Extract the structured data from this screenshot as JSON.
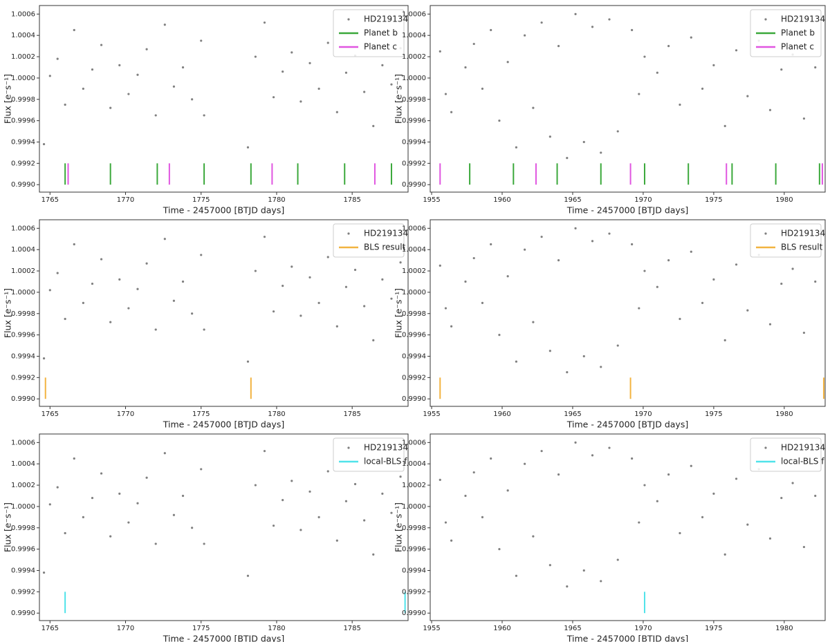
{
  "chart_data": [
    {
      "type": "scatter",
      "xlabel": "Time - 2457000 [BTJD days]",
      "ylabel": "Flux [e⁻s⁻¹]",
      "xlim": [
        1764.3,
        1788.7
      ],
      "ylim": [
        0.99893,
        1.00068
      ],
      "xticks": [
        1765,
        1770,
        1775,
        1780,
        1785
      ],
      "yticks": [
        {
          "value": 0.999,
          "label": "0.9990"
        },
        {
          "value": 0.9992,
          "label": "0.9992"
        },
        {
          "value": 0.9994,
          "label": "0.9994"
        },
        {
          "value": 0.9996,
          "label": "0.9996"
        },
        {
          "value": 0.9998,
          "label": "0.9998"
        },
        {
          "value": 1,
          "label": "1.0000"
        },
        {
          "value": 1.0002,
          "label": "1.0002"
        },
        {
          "value": 1.0004,
          "label": "1.0004"
        },
        {
          "value": 1.0006,
          "label": "1.0006"
        }
      ],
      "legend": "upper right",
      "series": [
        {
          "name": "HD219134",
          "type": "scatter",
          "color": "#808080",
          "x": [
            1764.6,
            1765.0,
            1765.5,
            1766.0,
            1766.6,
            1767.2,
            1767.8,
            1768.4,
            1769.0,
            1769.6,
            1770.2,
            1770.8,
            1771.4,
            1772.0,
            1772.6,
            1773.2,
            1773.8,
            1774.4,
            1775.0,
            1775.2,
            1778.1,
            1778.6,
            1779.2,
            1779.8,
            1780.4,
            1781.0,
            1781.6,
            1782.2,
            1782.8,
            1783.4,
            1784.0,
            1784.6,
            1785.2,
            1785.8,
            1786.4,
            1787.0,
            1787.6,
            1788.2
          ],
          "values": [
            0.99938,
            1.00002,
            1.00018,
            0.99975,
            1.00045,
            0.9999,
            1.00008,
            1.00031,
            0.99972,
            1.00012,
            0.99985,
            1.00003,
            1.00027,
            0.99965,
            1.0005,
            0.99992,
            1.0001,
            0.9998,
            1.00035,
            0.99965,
            0.99935,
            1.0002,
            1.00052,
            0.99982,
            1.00006,
            1.00024,
            0.99978,
            1.00014,
            0.9999,
            1.00033,
            0.99968,
            1.00005,
            1.00021,
            0.99987,
            0.99955,
            1.00012,
            0.99994,
            1.00028
          ]
        },
        {
          "name": "Planet b",
          "type": "vline",
          "color": "#3aa83a",
          "x": [
            1766.0,
            1769.0,
            1772.1,
            1775.2,
            1778.3,
            1781.4,
            1784.5,
            1787.6
          ],
          "ymin": 0.999,
          "ymax": 0.9992
        },
        {
          "name": "Planet c",
          "type": "vline",
          "color": "#e055e0",
          "x": [
            1766.2,
            1772.9,
            1779.7,
            1786.5
          ],
          "ymin": 0.999,
          "ymax": 0.9992
        }
      ]
    },
    {
      "type": "scatter",
      "xlabel": "Time - 2457000 [BTJD days]",
      "ylabel": "Flux [e⁻s⁻¹]",
      "xlim": [
        1954.9,
        1982.9
      ],
      "ylim": [
        0.99893,
        1.00068
      ],
      "xticks": [
        1955,
        1960,
        1965,
        1970,
        1975,
        1980
      ],
      "yticks": [
        {
          "value": 0.999,
          "label": "0.9990"
        },
        {
          "value": 0.9992,
          "label": "0.9992"
        },
        {
          "value": 0.9994,
          "label": "0.9994"
        },
        {
          "value": 0.9996,
          "label": "0.9996"
        },
        {
          "value": 0.9998,
          "label": "0.9998"
        },
        {
          "value": 1,
          "label": "1.0000"
        },
        {
          "value": 1.0002,
          "label": "1.0002"
        },
        {
          "value": 1.0004,
          "label": "1.0004"
        },
        {
          "value": 1.0006,
          "label": "1.0006"
        }
      ],
      "legend": "upper right",
      "series": [
        {
          "name": "HD219134",
          "type": "scatter",
          "color": "#808080",
          "x": [
            1955.6,
            1956.0,
            1956.4,
            1957.4,
            1958.0,
            1958.6,
            1959.2,
            1959.8,
            1960.4,
            1961.0,
            1961.6,
            1962.2,
            1962.8,
            1963.4,
            1964.0,
            1964.6,
            1965.2,
            1965.8,
            1966.4,
            1967.0,
            1967.6,
            1968.2,
            1969.2,
            1969.7,
            1970.1,
            1971.0,
            1971.8,
            1972.6,
            1973.4,
            1974.2,
            1975.0,
            1975.8,
            1976.6,
            1977.4,
            1978.2,
            1979.0,
            1979.8,
            1980.6,
            1981.4,
            1982.2
          ],
          "values": [
            1.00025,
            0.99985,
            0.99968,
            1.0001,
            1.00032,
            0.9999,
            1.00045,
            0.9996,
            1.00015,
            0.99935,
            1.0004,
            0.99972,
            1.00052,
            0.99945,
            1.0003,
            0.99925,
            1.0006,
            0.9994,
            1.00048,
            0.9993,
            1.00055,
            0.9995,
            1.00045,
            0.99985,
            1.0002,
            1.00005,
            1.0003,
            0.99975,
            1.00038,
            0.9999,
            1.00012,
            0.99955,
            1.00026,
            0.99983,
            1.00035,
            0.9997,
            1.00008,
            1.00022,
            0.99962,
            1.0001
          ]
        },
        {
          "name": "Planet b",
          "type": "vline",
          "color": "#3aa83a",
          "x": [
            1957.7,
            1960.8,
            1963.9,
            1967.0,
            1970.1,
            1973.2,
            1976.3,
            1979.4,
            1982.5
          ],
          "ymin": 0.999,
          "ymax": 0.9992
        },
        {
          "name": "Planet c",
          "type": "vline",
          "color": "#e055e0",
          "x": [
            1955.6,
            1962.4,
            1969.1,
            1975.9,
            1982.7
          ],
          "ymin": 0.999,
          "ymax": 0.9992
        }
      ]
    },
    {
      "type": "scatter",
      "xlabel": "Time - 2457000 [BTJD days]",
      "ylabel": "Flux [e⁻s⁻¹]",
      "xlim": [
        1764.3,
        1788.7
      ],
      "ylim": [
        0.99893,
        1.00068
      ],
      "xticks": [
        1765,
        1770,
        1775,
        1780,
        1785
      ],
      "yticks": [
        {
          "value": 0.999,
          "label": "0.9990"
        },
        {
          "value": 0.9992,
          "label": "0.9992"
        },
        {
          "value": 0.9994,
          "label": "0.9994"
        },
        {
          "value": 0.9996,
          "label": "0.9996"
        },
        {
          "value": 0.9998,
          "label": "0.9998"
        },
        {
          "value": 1,
          "label": "1.0000"
        },
        {
          "value": 1.0002,
          "label": "1.0002"
        },
        {
          "value": 1.0004,
          "label": "1.0004"
        },
        {
          "value": 1.0006,
          "label": "1.0006"
        }
      ],
      "legend": "upper right",
      "series": [
        {
          "name": "HD219134",
          "type": "scatter",
          "color": "#808080",
          "x": [
            1764.6,
            1765.0,
            1765.5,
            1766.0,
            1766.6,
            1767.2,
            1767.8,
            1768.4,
            1769.0,
            1769.6,
            1770.2,
            1770.8,
            1771.4,
            1772.0,
            1772.6,
            1773.2,
            1773.8,
            1774.4,
            1775.0,
            1775.2,
            1778.1,
            1778.6,
            1779.2,
            1779.8,
            1780.4,
            1781.0,
            1781.6,
            1782.2,
            1782.8,
            1783.4,
            1784.0,
            1784.6,
            1785.2,
            1785.8,
            1786.4,
            1787.0,
            1787.6,
            1788.2
          ],
          "values": [
            0.99938,
            1.00002,
            1.00018,
            0.99975,
            1.00045,
            0.9999,
            1.00008,
            1.00031,
            0.99972,
            1.00012,
            0.99985,
            1.00003,
            1.00027,
            0.99965,
            1.0005,
            0.99992,
            1.0001,
            0.9998,
            1.00035,
            0.99965,
            0.99935,
            1.0002,
            1.00052,
            0.99982,
            1.00006,
            1.00024,
            0.99978,
            1.00014,
            0.9999,
            1.00033,
            0.99968,
            1.00005,
            1.00021,
            0.99987,
            0.99955,
            1.00012,
            0.99994,
            1.00028
          ]
        },
        {
          "name": "BLS result",
          "type": "vline",
          "color": "#f2b340",
          "x": [
            1764.7,
            1778.3
          ],
          "ymin": 0.999,
          "ymax": 0.9992
        }
      ]
    },
    {
      "type": "scatter",
      "xlabel": "Time - 2457000 [BTJD days]",
      "ylabel": "Flux [e⁻s⁻¹]",
      "xlim": [
        1954.9,
        1982.9
      ],
      "ylim": [
        0.99893,
        1.00068
      ],
      "xticks": [
        1955,
        1960,
        1965,
        1970,
        1975,
        1980
      ],
      "yticks": [
        {
          "value": 0.999,
          "label": "0.9990"
        },
        {
          "value": 0.9992,
          "label": "0.9992"
        },
        {
          "value": 0.9994,
          "label": "0.9994"
        },
        {
          "value": 0.9996,
          "label": "0.9996"
        },
        {
          "value": 0.9998,
          "label": "0.9998"
        },
        {
          "value": 1,
          "label": "1.0000"
        },
        {
          "value": 1.0002,
          "label": "1.0002"
        },
        {
          "value": 1.0004,
          "label": "1.0004"
        },
        {
          "value": 1.0006,
          "label": "1.0006"
        }
      ],
      "legend": "upper right",
      "series": [
        {
          "name": "HD219134",
          "type": "scatter",
          "color": "#808080",
          "x": [
            1955.6,
            1956.0,
            1956.4,
            1957.4,
            1958.0,
            1958.6,
            1959.2,
            1959.8,
            1960.4,
            1961.0,
            1961.6,
            1962.2,
            1962.8,
            1963.4,
            1964.0,
            1964.6,
            1965.2,
            1965.8,
            1966.4,
            1967.0,
            1967.6,
            1968.2,
            1969.2,
            1969.7,
            1970.1,
            1971.0,
            1971.8,
            1972.6,
            1973.4,
            1974.2,
            1975.0,
            1975.8,
            1976.6,
            1977.4,
            1978.2,
            1979.0,
            1979.8,
            1980.6,
            1981.4,
            1982.2
          ],
          "values": [
            1.00025,
            0.99985,
            0.99968,
            1.0001,
            1.00032,
            0.9999,
            1.00045,
            0.9996,
            1.00015,
            0.99935,
            1.0004,
            0.99972,
            1.00052,
            0.99945,
            1.0003,
            0.99925,
            1.0006,
            0.9994,
            1.00048,
            0.9993,
            1.00055,
            0.9995,
            1.00045,
            0.99985,
            1.0002,
            1.00005,
            1.0003,
            0.99975,
            1.00038,
            0.9999,
            1.00012,
            0.99955,
            1.00026,
            0.99983,
            1.00035,
            0.9997,
            1.00008,
            1.00022,
            0.99962,
            1.0001
          ]
        },
        {
          "name": "BLS result",
          "type": "vline",
          "color": "#f2b340",
          "x": [
            1955.6,
            1969.1,
            1982.8
          ],
          "ymin": 0.999,
          "ymax": 0.9992
        }
      ]
    },
    {
      "type": "scatter",
      "xlabel": "Time - 2457000 [BTJD days]",
      "ylabel": "Flux [e⁻s⁻¹]",
      "xlim": [
        1764.3,
        1788.7
      ],
      "ylim": [
        0.99893,
        1.00068
      ],
      "xticks": [
        1765,
        1770,
        1775,
        1780,
        1785
      ],
      "yticks": [
        {
          "value": 0.999,
          "label": "0.9990"
        },
        {
          "value": 0.9992,
          "label": "0.9992"
        },
        {
          "value": 0.9994,
          "label": "0.9994"
        },
        {
          "value": 0.9996,
          "label": "0.9996"
        },
        {
          "value": 0.9998,
          "label": "0.9998"
        },
        {
          "value": 1,
          "label": "1.0000"
        },
        {
          "value": 1.0002,
          "label": "1.0002"
        },
        {
          "value": 1.0004,
          "label": "1.0004"
        },
        {
          "value": 1.0006,
          "label": "1.0006"
        }
      ],
      "legend": "upper right",
      "series": [
        {
          "name": "HD219134",
          "type": "scatter",
          "color": "#808080",
          "x": [
            1764.6,
            1765.0,
            1765.5,
            1766.0,
            1766.6,
            1767.2,
            1767.8,
            1768.4,
            1769.0,
            1769.6,
            1770.2,
            1770.8,
            1771.4,
            1772.0,
            1772.6,
            1773.2,
            1773.8,
            1774.4,
            1775.0,
            1775.2,
            1778.1,
            1778.6,
            1779.2,
            1779.8,
            1780.4,
            1781.0,
            1781.6,
            1782.2,
            1782.8,
            1783.4,
            1784.0,
            1784.6,
            1785.2,
            1785.8,
            1786.4,
            1787.0,
            1787.6,
            1788.2
          ],
          "values": [
            0.99938,
            1.00002,
            1.00018,
            0.99975,
            1.00045,
            0.9999,
            1.00008,
            1.00031,
            0.99972,
            1.00012,
            0.99985,
            1.00003,
            1.00027,
            0.99965,
            1.0005,
            0.99992,
            1.0001,
            0.9998,
            1.00035,
            0.99965,
            0.99935,
            1.0002,
            1.00052,
            0.99982,
            1.00006,
            1.00024,
            0.99978,
            1.00014,
            0.9999,
            1.00033,
            0.99968,
            1.00005,
            1.00021,
            0.99987,
            0.99955,
            1.00012,
            0.99994,
            1.00028
          ]
        },
        {
          "name": "local-BLS f",
          "type": "vline",
          "color": "#4fe3ea",
          "x": [
            1766.0,
            1788.5
          ],
          "ymin": 0.999,
          "ymax": 0.9992
        }
      ]
    },
    {
      "type": "scatter",
      "xlabel": "Time - 2457000 [BTJD days]",
      "ylabel": "Flux [e⁻s⁻¹]",
      "xlim": [
        1954.9,
        1982.9
      ],
      "ylim": [
        0.99893,
        1.00068
      ],
      "xticks": [
        1955,
        1960,
        1965,
        1970,
        1975,
        1980
      ],
      "yticks": [
        {
          "value": 0.999,
          "label": "0.9990"
        },
        {
          "value": 0.9992,
          "label": "0.9992"
        },
        {
          "value": 0.9994,
          "label": "0.9994"
        },
        {
          "value": 0.9996,
          "label": "0.9996"
        },
        {
          "value": 0.9998,
          "label": "0.9998"
        },
        {
          "value": 1,
          "label": "1.0000"
        },
        {
          "value": 1.0002,
          "label": "1.0002"
        },
        {
          "value": 1.0004,
          "label": "1.0004"
        },
        {
          "value": 1.0006,
          "label": "1.0006"
        }
      ],
      "legend": "upper right",
      "series": [
        {
          "name": "HD219134",
          "type": "scatter",
          "color": "#808080",
          "x": [
            1955.6,
            1956.0,
            1956.4,
            1957.4,
            1958.0,
            1958.6,
            1959.2,
            1959.8,
            1960.4,
            1961.0,
            1961.6,
            1962.2,
            1962.8,
            1963.4,
            1964.0,
            1964.6,
            1965.2,
            1965.8,
            1966.4,
            1967.0,
            1967.6,
            1968.2,
            1969.2,
            1969.7,
            1970.1,
            1971.0,
            1971.8,
            1972.6,
            1973.4,
            1974.2,
            1975.0,
            1975.8,
            1976.6,
            1977.4,
            1978.2,
            1979.0,
            1979.8,
            1980.6,
            1981.4,
            1982.2
          ],
          "values": [
            1.00025,
            0.99985,
            0.99968,
            1.0001,
            1.00032,
            0.9999,
            1.00045,
            0.9996,
            1.00015,
            0.99935,
            1.0004,
            0.99972,
            1.00052,
            0.99945,
            1.0003,
            0.99925,
            1.0006,
            0.9994,
            1.00048,
            0.9993,
            1.00055,
            0.9995,
            1.00045,
            0.99985,
            1.0002,
            1.00005,
            1.0003,
            0.99975,
            1.00038,
            0.9999,
            1.00012,
            0.99955,
            1.00026,
            0.99983,
            1.00035,
            0.9997,
            1.00008,
            1.00022,
            0.99962,
            1.0001
          ]
        },
        {
          "name": "local-BLS f",
          "type": "vline",
          "color": "#4fe3ea",
          "x": [
            1970.1
          ],
          "ymin": 0.999,
          "ymax": 0.9992
        }
      ]
    }
  ]
}
